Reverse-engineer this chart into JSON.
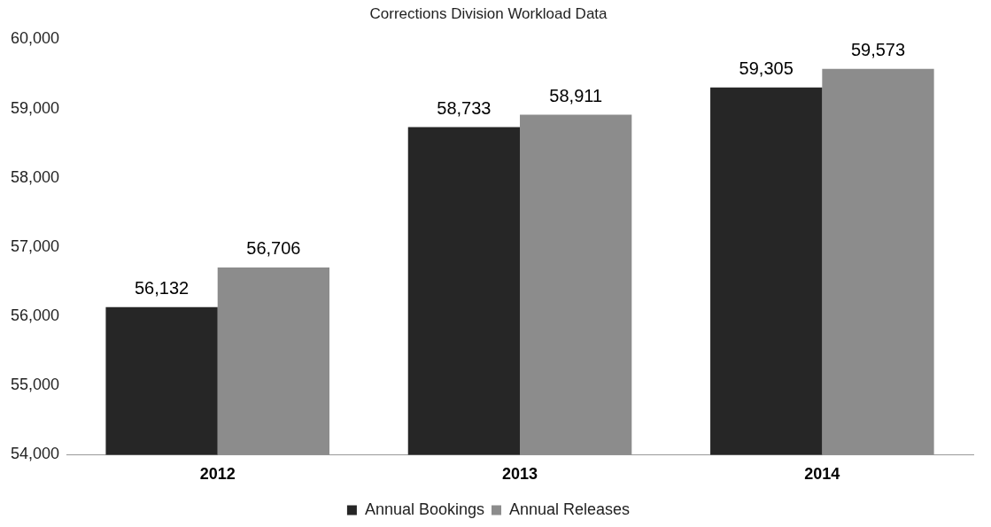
{
  "chart_data": {
    "type": "bar",
    "title": "Corrections Division Workload Data",
    "categories": [
      "2012",
      "2013",
      "2014"
    ],
    "series": [
      {
        "name": "Annual Bookings",
        "color": "#262626",
        "values": [
          56132,
          58733,
          59305
        ],
        "value_labels": [
          "56,132",
          "58,733",
          "59,305"
        ]
      },
      {
        "name": "Annual Releases",
        "color": "#8c8c8c",
        "values": [
          56706,
          58911,
          59573
        ],
        "value_labels": [
          "56,706",
          "58,911",
          "59,573"
        ]
      }
    ],
    "ylim": [
      54000,
      60000
    ],
    "yticks": [
      {
        "value": 54000,
        "label": "54,000"
      },
      {
        "value": 55000,
        "label": "55,000"
      },
      {
        "value": 56000,
        "label": "56,000"
      },
      {
        "value": 57000,
        "label": "57,000"
      },
      {
        "value": 58000,
        "label": "58,000"
      },
      {
        "value": 59000,
        "label": "59,000"
      },
      {
        "value": 60000,
        "label": "60,000"
      }
    ],
    "grid": false,
    "legend": "bottom"
  }
}
